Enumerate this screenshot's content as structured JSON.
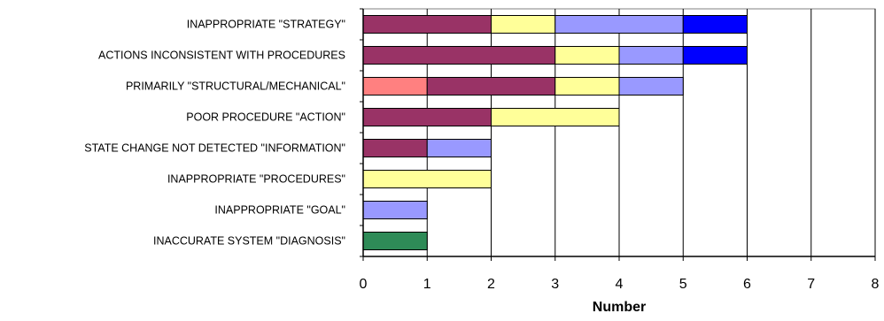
{
  "chart_data": {
    "type": "bar",
    "orientation": "horizontal",
    "stacked": true,
    "title": "",
    "xlabel": "Number",
    "ylabel": "",
    "xlim": [
      0,
      8
    ],
    "xticks": [
      "0",
      "1",
      "2",
      "3",
      "4",
      "5",
      "6",
      "7",
      "8"
    ],
    "grid": "vertical",
    "legend": "none",
    "categories": [
      "INAPPROPRIATE \"STRATEGY\"",
      "ACTIONS INCONSISTENT WITH PROCEDURES",
      "PRIMARILY \"STRUCTURAL/MECHANICAL\"",
      "POOR PROCEDURE \"ACTION\"",
      "STATE CHANGE NOT DETECTED \"INFORMATION\"",
      "INAPPROPRIATE \"PROCEDURES\"",
      "INAPPROPRIATE \"GOAL\"",
      "INACCURATE SYSTEM \"DIAGNOSIS\""
    ],
    "series": [
      {
        "color": "#2e8b57",
        "values": [
          0,
          0,
          0,
          0,
          0,
          0,
          0,
          1
        ]
      },
      {
        "color": "#ff8080",
        "values": [
          0,
          0,
          1,
          0,
          0,
          0,
          0,
          0
        ]
      },
      {
        "color": "#993366",
        "values": [
          2,
          3,
          2,
          2,
          1,
          0,
          0,
          0
        ]
      },
      {
        "color": "#ffff99",
        "values": [
          1,
          1,
          1,
          2,
          0,
          2,
          0,
          0
        ]
      },
      {
        "color": "#9999ff",
        "values": [
          2,
          1,
          1,
          0,
          1,
          0,
          1,
          0
        ]
      },
      {
        "color": "#0000ff",
        "values": [
          1,
          1,
          0,
          0,
          0,
          0,
          0,
          0
        ]
      }
    ]
  }
}
